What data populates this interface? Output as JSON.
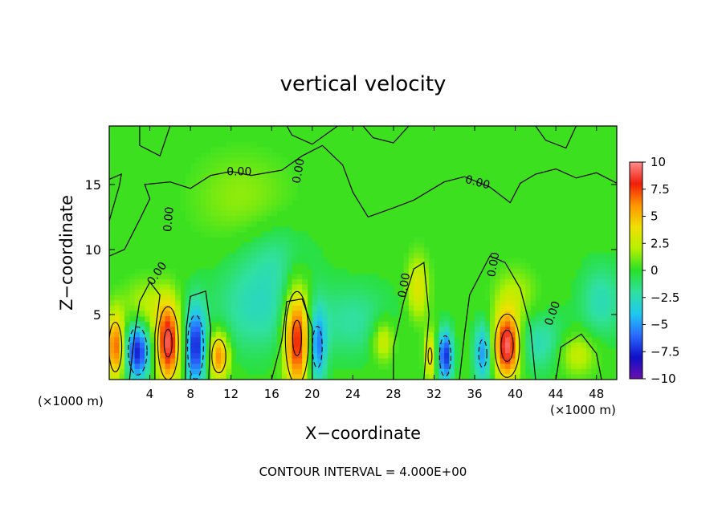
{
  "chart_data": {
    "type": "heatmap",
    "title": "vertical velocity",
    "xlabel": "X−coordinate",
    "ylabel": "Z−coordinate",
    "x_unit_left": "(×1000 m)",
    "x_unit_right": "(×1000 m)",
    "footer": "CONTOUR INTERVAL = 4.000E+00",
    "xlim": [
      0,
      50
    ],
    "ylim": [
      0,
      19.5
    ],
    "x_ticks": [
      4,
      8,
      12,
      16,
      20,
      24,
      28,
      32,
      36,
      40,
      44,
      48
    ],
    "x_tick_labels": [
      "4",
      "8",
      "12",
      "16",
      "20",
      "24",
      "28",
      "32",
      "36",
      "40",
      "44",
      "48"
    ],
    "y_ticks": [
      5,
      10,
      15
    ],
    "y_tick_labels": [
      "5",
      "10",
      "15"
    ],
    "colorbar": {
      "min": -10,
      "max": 10,
      "ticks": [
        10,
        7.5,
        5,
        2.5,
        0,
        -2.5,
        -5,
        -7.5,
        -10
      ],
      "tick_labels": [
        "10",
        "7.5",
        "5",
        "2.5",
        "0",
        "−2.5",
        "−5",
        "−7.5",
        "−10"
      ],
      "colors": [
        "#6a0dad",
        "#1010c8",
        "#2a6aff",
        "#20c8f0",
        "#30e0a0",
        "#28e028",
        "#b4f000",
        "#f0e000",
        "#ff9600",
        "#f01e0a",
        "#ff8c8c"
      ]
    },
    "contour_label": "0.00",
    "contour_labels": [
      {
        "text": "0.00",
        "x": 12.8,
        "z": 15.7,
        "angle": 0
      },
      {
        "text": "0.00",
        "x": 36.2,
        "z": 14.9,
        "angle": 15
      },
      {
        "text": "0.00",
        "x": 6.2,
        "z": 12.3,
        "angle": -85
      },
      {
        "text": "0.00",
        "x": 5.0,
        "z": 8.0,
        "angle": -55
      },
      {
        "text": "0.00",
        "x": 19.0,
        "z": 16.0,
        "angle": -80
      },
      {
        "text": "0.00",
        "x": 29.4,
        "z": 7.2,
        "angle": -80
      },
      {
        "text": "0.00",
        "x": 38.2,
        "z": 8.8,
        "angle": -80
      },
      {
        "text": "0.00",
        "x": 44.0,
        "z": 5.0,
        "angle": -70
      }
    ],
    "features": [
      {
        "x": 0.6,
        "z": 2.5,
        "value": 7.0,
        "sx": 0.6,
        "sz": 1.8
      },
      {
        "x": 2.8,
        "z": 2.2,
        "value": -7.8,
        "sx": 0.8,
        "sz": 1.6
      },
      {
        "x": 5.8,
        "z": 2.8,
        "value": 9.0,
        "sx": 0.8,
        "sz": 2.2
      },
      {
        "x": 8.5,
        "z": 2.5,
        "value": -7.5,
        "sx": 0.7,
        "sz": 2.2
      },
      {
        "x": 10.8,
        "z": 1.8,
        "value": 6.5,
        "sx": 0.7,
        "sz": 1.3
      },
      {
        "x": 18.5,
        "z": 3.2,
        "value": 9.0,
        "sx": 0.9,
        "sz": 2.8
      },
      {
        "x": 20.5,
        "z": 2.5,
        "value": -5.5,
        "sx": 0.6,
        "sz": 2.0
      },
      {
        "x": 31.6,
        "z": 1.8,
        "value": 4.5,
        "sx": 0.4,
        "sz": 1.3
      },
      {
        "x": 33.1,
        "z": 1.8,
        "value": -7.5,
        "sx": 0.5,
        "sz": 1.4
      },
      {
        "x": 36.8,
        "z": 2.0,
        "value": -5.0,
        "sx": 0.6,
        "sz": 1.6
      },
      {
        "x": 39.2,
        "z": 2.6,
        "value": 10.0,
        "sx": 0.9,
        "sz": 1.8
      },
      {
        "x": 42.5,
        "z": 2.8,
        "value": -2.5,
        "sx": 2.0,
        "sz": 1.6
      },
      {
        "x": 46.0,
        "z": 2.0,
        "value": 3.0,
        "sx": 1.4,
        "sz": 1.2
      },
      {
        "x": 30.4,
        "z": 7.0,
        "value": 3.5,
        "sx": 0.8,
        "sz": 1.8
      },
      {
        "x": 14.5,
        "z": 5.5,
        "value": -2.5,
        "sx": 3.0,
        "sz": 2.5
      },
      {
        "x": 24.0,
        "z": 4.5,
        "value": -2.0,
        "sx": 3.0,
        "sz": 2.0
      },
      {
        "x": 16.5,
        "z": 9.5,
        "value": -1.5,
        "sx": 2.5,
        "sz": 2.0
      },
      {
        "x": 48.5,
        "z": 6.0,
        "value": -2.5,
        "sx": 1.5,
        "sz": 2.0
      },
      {
        "x": 27.0,
        "z": 3.0,
        "value": 3.5,
        "sx": 0.8,
        "sz": 1.2
      },
      {
        "x": 3.5,
        "z": 5.5,
        "value": 2.5,
        "sx": 1.5,
        "sz": 1.5
      },
      {
        "x": 13.0,
        "z": 14.0,
        "value": 1.5,
        "sx": 3.5,
        "sz": 2.5
      },
      {
        "x": 40.0,
        "z": 6.5,
        "value": 2.0,
        "sx": 1.5,
        "sz": 1.5
      }
    ]
  }
}
